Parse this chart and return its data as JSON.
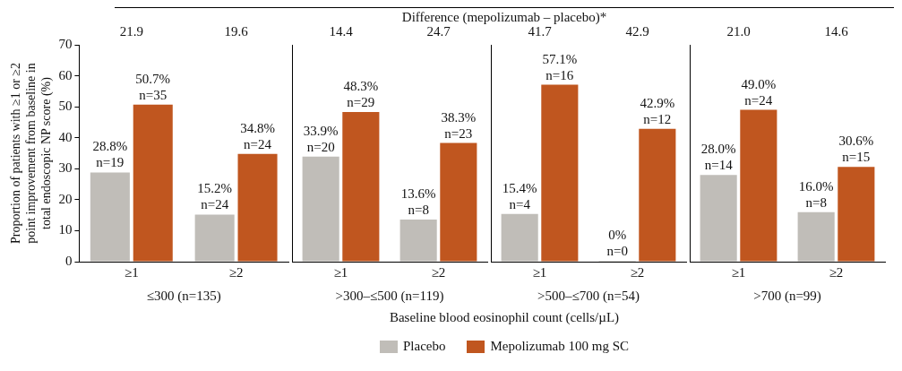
{
  "chart_data": [
    {
      "type": "bar",
      "ylabel": "Proportion of patients with ≥1 or ≥2 point improvement from baseline in total endoscopic NP score (%)",
      "xlabel": "≤300 (n=135)",
      "categories": [
        "≥1",
        "≥2"
      ],
      "series": [
        {
          "name": "Placebo",
          "color": "#c0bdb8",
          "values": [
            28.8,
            15.2
          ],
          "value_labels": [
            "28.8%\nn=19",
            "15.2%\nn=24"
          ]
        },
        {
          "name": "Mepolizumab 100 mg SC",
          "color": "#c0561f",
          "values": [
            50.7,
            34.8
          ],
          "value_labels": [
            "50.7%\nn=35",
            "34.8%\nn=24"
          ]
        }
      ],
      "ylim": [
        0,
        70
      ],
      "yticks": [
        0,
        10,
        20,
        30,
        40,
        50,
        60,
        70
      ],
      "grid": false,
      "legend": "bottom",
      "annotations": [
        "21.9",
        "19.6"
      ]
    },
    {
      "type": "bar",
      "xlabel": ">300–≤500 (n=119)",
      "categories": [
        "≥1",
        "≥2"
      ],
      "series": [
        {
          "color": "#c0bdb8",
          "values": [
            33.9,
            13.6
          ],
          "value_labels": [
            "33.9%\nn=20",
            "13.6%\nn=8"
          ]
        },
        {
          "color": "#c0561f",
          "values": [
            48.3,
            38.3
          ],
          "value_labels": [
            "48.3%\nn=29",
            "38.3%\nn=23"
          ]
        }
      ],
      "ylim": [
        0,
        70
      ],
      "yticks": [
        0,
        10,
        20,
        30,
        40,
        50,
        60,
        70
      ],
      "grid": false,
      "tick_labels": "x",
      "annotations": [
        "14.4",
        "24.7"
      ]
    },
    {
      "type": "bar",
      "xlabel": ">500–≤700 (n=54)",
      "categories": [
        "≥1",
        "≥2"
      ],
      "series": [
        {
          "color": "#c0bdb8",
          "values": [
            15.4,
            0
          ],
          "value_labels": [
            "15.4%\nn=4",
            "0%\nn=0"
          ]
        },
        {
          "color": "#c0561f",
          "values": [
            57.1,
            42.9
          ],
          "value_labels": [
            "57.1%\nn=16",
            "42.9%\nn=12"
          ]
        }
      ],
      "ylim": [
        0,
        70
      ],
      "yticks": [
        0,
        10,
        20,
        30,
        40,
        50,
        60,
        70
      ],
      "grid": false,
      "tick_labels": "x",
      "annotations": [
        "41.7",
        "42.9"
      ]
    },
    {
      "type": "bar",
      "xlabel": ">700 (n=99)",
      "categories": [
        "≥1",
        "≥2"
      ],
      "series": [
        {
          "color": "#c0bdb8",
          "values": [
            28.0,
            16.0
          ],
          "value_labels": [
            "28.0%\nn=14",
            "16.0%\nn=8"
          ]
        },
        {
          "color": "#c0561f",
          "values": [
            49.0,
            30.6
          ],
          "value_labels": [
            "49.0%\nn=24",
            "30.6%\nn=15"
          ]
        }
      ],
      "ylim": [
        0,
        70
      ],
      "yticks": [
        0,
        10,
        20,
        30,
        40,
        50,
        60,
        70
      ],
      "grid": false,
      "tick_labels": "x",
      "annotations": [
        "21.0",
        "14.6"
      ]
    },
    {
      "type": "other",
      "title": "Difference (mepolizumab – placebo)*",
      "annotations": [
        "Baseline blood eosinophil count (cells/µL)"
      ]
    }
  ]
}
